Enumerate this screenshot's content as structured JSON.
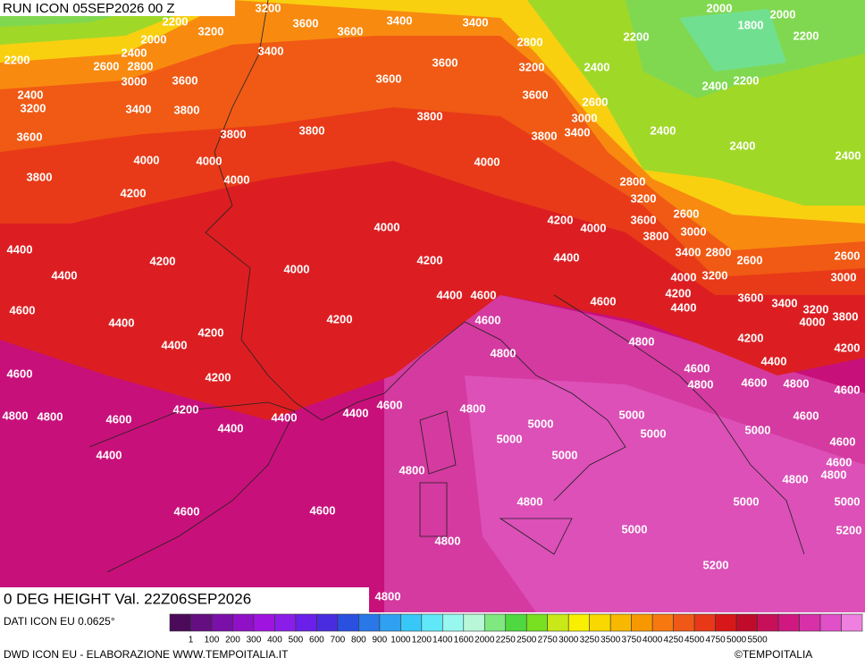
{
  "header": {
    "run": "RUN ICON 05SEP2026 00 Z"
  },
  "map": {
    "title": "0 DEG HEIGHT Val. 22Z06SEP2026",
    "contour_labels": [
      3200,
      2200,
      3600,
      3400,
      3400,
      2000,
      1800,
      2000,
      2200,
      2200,
      3200,
      2000,
      3400,
      3600,
      2800,
      2400,
      2200,
      2600,
      2800,
      3600,
      3200,
      2400,
      3000,
      3600,
      3600,
      2400,
      2200,
      2400,
      3200,
      3400,
      3800,
      3600,
      2600,
      3800,
      3000,
      3400,
      3800,
      3600,
      3800,
      3800,
      2400,
      2400,
      4000,
      4000,
      4000,
      2400,
      3800,
      4000,
      2800,
      4200,
      3200,
      2600,
      4200,
      4000,
      3600,
      4000,
      3000,
      3800,
      4400,
      2800,
      3400,
      2600,
      2600,
      4200,
      4200,
      4400,
      4000,
      4400,
      4000,
      3200,
      3000,
      4200,
      4400,
      4600,
      4600,
      3600,
      3400,
      3200,
      4600,
      4400,
      3800,
      4000,
      4200,
      4600,
      4400,
      4200,
      4200,
      4400,
      4800,
      4200,
      4800,
      4400,
      4600,
      4600,
      4200,
      4800,
      4600,
      4800,
      4600,
      4600,
      4800,
      4200,
      4800,
      4800,
      4600,
      4400,
      4400,
      5000,
      4600,
      5000,
      4400,
      5000,
      5000,
      5000,
      4600,
      5000,
      4400,
      4600,
      4800,
      4800,
      4800,
      4800,
      5000,
      5000,
      4600,
      4600,
      5000,
      5200,
      4800,
      5200,
      4800
    ]
  },
  "legend": {
    "source": "DATI ICON EU 0.0625°",
    "colors": [
      "#4b0a5a",
      "#650e82",
      "#7a10a8",
      "#9010c8",
      "#a014e0",
      "#8a1ee8",
      "#6a20e8",
      "#4a2ce0",
      "#2a50e0",
      "#2a78e8",
      "#30a0f0",
      "#38c8f8",
      "#60e8f8",
      "#98f8f0",
      "#b8f8d8",
      "#80e880",
      "#50d840",
      "#78e020",
      "#c8e818",
      "#f8f000",
      "#f8d800",
      "#f8b800",
      "#f89800",
      "#f87810",
      "#f05818",
      "#e83818",
      "#d81818",
      "#c00c2a",
      "#c8105a",
      "#d01880",
      "#d830a8",
      "#e050c8",
      "#f080e0"
    ],
    "labels": [
      1,
      100,
      200,
      300,
      400,
      500,
      600,
      700,
      800,
      900,
      1000,
      1200,
      1400,
      1600,
      2000,
      2250,
      2500,
      2750,
      3000,
      3250,
      3500,
      3750,
      4000,
      4250,
      4500,
      4750,
      5000,
      5500
    ]
  },
  "footer": {
    "credit": "DWD ICON EU - ELABORAZIONE WWW.TEMPOITALIA.IT",
    "copyright": "©TEMPOITALIA"
  }
}
